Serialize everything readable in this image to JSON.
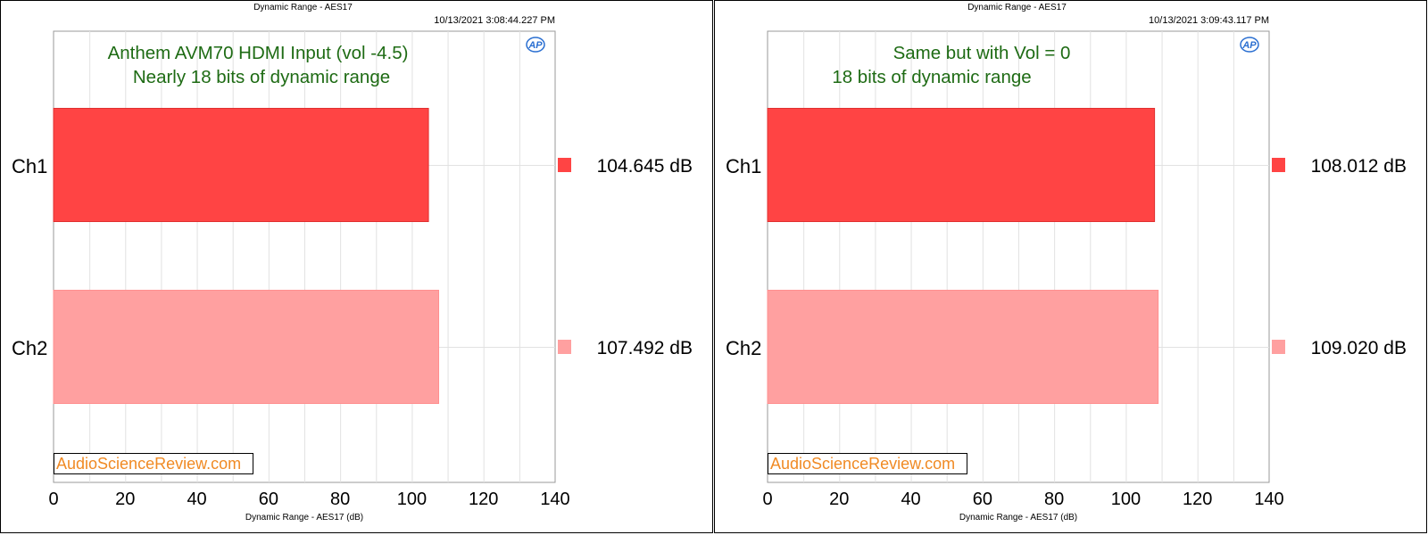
{
  "chart_data": [
    {
      "type": "bar",
      "orientation": "horizontal",
      "title": "Dynamic Range - AES17",
      "timestamp": "10/13/2021 3:08:44.227 PM",
      "annotation": [
        "Anthem AVM70 HDMI Input (vol -4.5)",
        "Nearly 18 bits of dynamic range"
      ],
      "categories": [
        "Ch1",
        "Ch2"
      ],
      "values": [
        104.645,
        107.492
      ],
      "value_labels": [
        "104.645  dB",
        "107.492  dB"
      ],
      "colors": [
        "#ff4444",
        "#ffa0a0"
      ],
      "xlabel": "Dynamic Range - AES17 (dB)",
      "xlim": [
        0,
        140
      ],
      "xticks": [
        0,
        20,
        40,
        60,
        80,
        100,
        120,
        140
      ],
      "grid": true,
      "logo": "AP",
      "watermark": "AudioScienceReview.com"
    },
    {
      "type": "bar",
      "orientation": "horizontal",
      "title": "Dynamic Range - AES17",
      "timestamp": "10/13/2021 3:09:43.117 PM",
      "annotation": [
        "Same but with Vol = 0",
        "18 bits of dynamic range"
      ],
      "categories": [
        "Ch1",
        "Ch2"
      ],
      "values": [
        108.012,
        109.02
      ],
      "value_labels": [
        "108.012  dB",
        "109.020  dB"
      ],
      "colors": [
        "#ff4444",
        "#ffa0a0"
      ],
      "xlabel": "Dynamic Range - AES17 (dB)",
      "xlim": [
        0,
        140
      ],
      "xticks": [
        0,
        20,
        40,
        60,
        80,
        100,
        120,
        140
      ],
      "grid": true,
      "logo": "AP",
      "watermark": "AudioScienceReview.com"
    }
  ]
}
